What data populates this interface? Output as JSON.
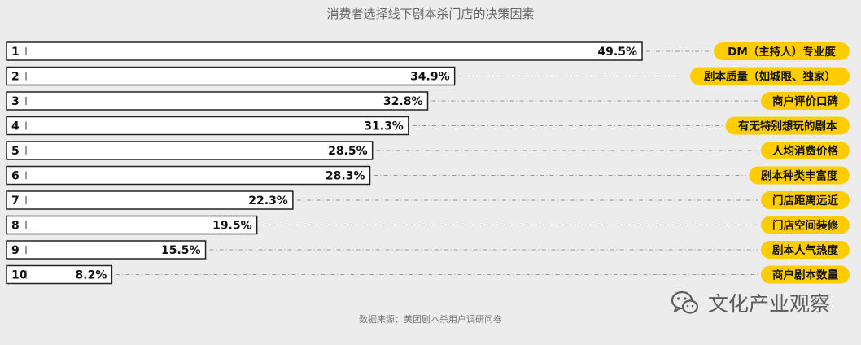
{
  "chart_data": {
    "type": "bar",
    "orientation": "horizontal",
    "title": "消费者选择线下剧本杀门店的决策因素",
    "source": "数据来源：美团剧本杀用户调研问卷",
    "categories": [
      "DM（主持人）专业度",
      "剧本质量（如城限、独家）",
      "商户评价口碑",
      "有无特别想玩的剧本",
      "人均消费价格",
      "剧本种类丰富度",
      "门店距离远近",
      "门店空间装修",
      "剧本人气热度",
      "商户剧本数量"
    ],
    "ranks": [
      "1",
      "2",
      "3",
      "4",
      "5",
      "6",
      "7",
      "8",
      "9",
      "10"
    ],
    "values": [
      49.5,
      34.9,
      32.8,
      31.3,
      28.5,
      28.3,
      22.3,
      19.5,
      15.5,
      8.2
    ],
    "value_labels": [
      "49.5%",
      "34.9%",
      "32.8%",
      "31.3%",
      "28.5%",
      "28.3%",
      "22.3%",
      "19.5%",
      "15.5%",
      "8.2%"
    ],
    "unit": "%",
    "xlim": [
      0,
      49.5
    ]
  },
  "watermark": {
    "text": "文化产业观察",
    "icon": "wechat-icon"
  },
  "colors": {
    "background": "#ececec",
    "bar_fill": "#ffffff",
    "bar_stroke": "#222222",
    "label_pill": "#ffcc00",
    "leader_line": "#9a9a9a"
  }
}
